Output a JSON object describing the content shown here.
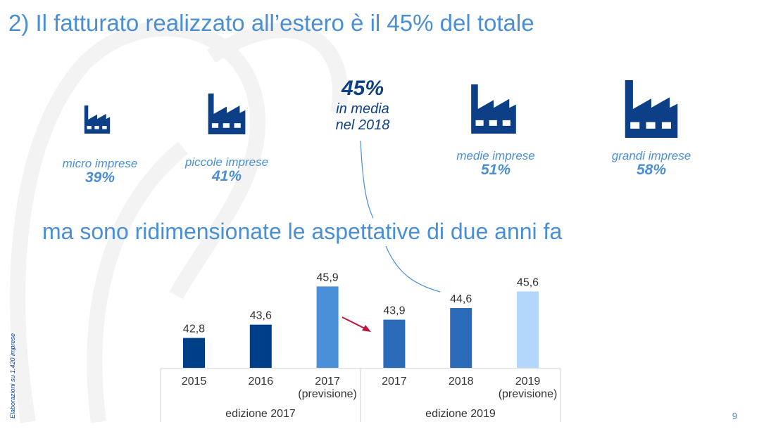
{
  "title": "2) Il fatturato realizzato all’estero è il 45% del totale",
  "subtitle": "ma sono ridimensionate le aspettative di due anni fa",
  "average": {
    "value": "45%",
    "line1": "in media",
    "line2": "nel 2018"
  },
  "categories": [
    {
      "label": "micro imprese",
      "value": "39%",
      "icon": "factory-icon"
    },
    {
      "label": "piccole imprese",
      "value": "41%",
      "icon": "factory-icon"
    },
    {
      "label": "medie imprese",
      "value": "51%",
      "icon": "factory-icon"
    },
    {
      "label": "grandi imprese",
      "value": "58%",
      "icon": "factory-icon"
    }
  ],
  "chart_data": {
    "type": "bar",
    "categories": [
      "2015",
      "2016",
      "2017 (previsione)",
      "2017",
      "2018",
      "2019 (previsione)"
    ],
    "tick_lines": [
      [
        "2015",
        ""
      ],
      [
        "2016",
        ""
      ],
      [
        "2017",
        "(previsione)"
      ],
      [
        "2017",
        ""
      ],
      [
        "2018",
        ""
      ],
      [
        "2019",
        "(previsione)"
      ]
    ],
    "values": [
      42.8,
      43.6,
      45.9,
      43.9,
      44.6,
      45.6
    ],
    "value_labels": [
      "42,8",
      "43,6",
      "45,9",
      "43,9",
      "44,6",
      "45,6"
    ],
    "colors": [
      "#003f87",
      "#003f87",
      "#4a90d9",
      "#2a6ab8",
      "#2a6ab8",
      "#b3d6fb"
    ],
    "groups": [
      "edizione 2017",
      "edizione 2019"
    ],
    "ylim": [
      41,
      46
    ]
  },
  "source_note": "Elaborazioni su 1.420 imprese",
  "page_number": "9"
}
